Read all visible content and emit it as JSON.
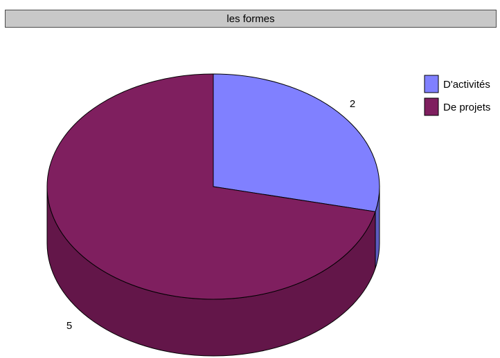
{
  "chart_data": {
    "type": "pie",
    "title": "les formes",
    "categories": [
      "D'activités",
      "De projets"
    ],
    "values": [
      2,
      5
    ],
    "colors": [
      "#8080ff",
      "#7f1f5f"
    ],
    "side_colors": [
      "#5c5cbe",
      "#631649"
    ],
    "legend_position": "top-right",
    "style": "3d-pie"
  }
}
